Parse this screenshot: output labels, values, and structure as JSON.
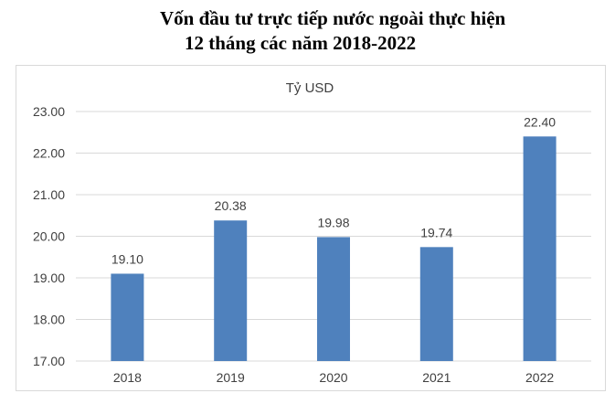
{
  "title": {
    "line1": "Vốn đầu tư trực tiếp nước ngoài thực hiện",
    "line2": "12 tháng các năm 2018-2022"
  },
  "chart_data": {
    "type": "bar",
    "title": "Vốn đầu tư trực tiếp nước ngoài thực hiện 12 tháng các năm 2018-2022",
    "unit_label": "Tỷ USD",
    "categories": [
      "2018",
      "2019",
      "2020",
      "2021",
      "2022"
    ],
    "values": [
      19.1,
      20.38,
      19.98,
      19.74,
      22.4
    ],
    "data_labels": [
      "19.10",
      "20.38",
      "19.98",
      "19.74",
      "22.40"
    ],
    "ylim": [
      17.0,
      23.0
    ],
    "yticks": [
      "17.00",
      "18.00",
      "19.00",
      "20.00",
      "21.00",
      "22.00",
      "23.00"
    ],
    "grid": true,
    "bar_color": "#4f81bd",
    "grid_color": "#d9d9d9"
  }
}
